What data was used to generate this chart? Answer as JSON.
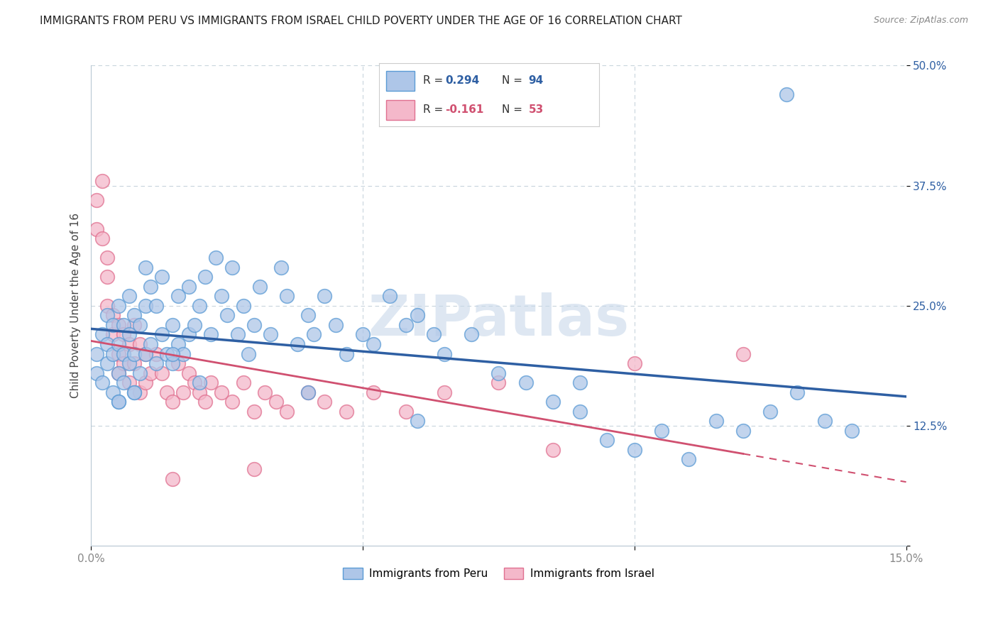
{
  "title": "IMMIGRANTS FROM PERU VS IMMIGRANTS FROM ISRAEL CHILD POVERTY UNDER THE AGE OF 16 CORRELATION CHART",
  "source": "Source: ZipAtlas.com",
  "ylabel": "Child Poverty Under the Age of 16",
  "xlim": [
    0,
    0.15
  ],
  "ylim": [
    0,
    0.5
  ],
  "xticks": [
    0.0,
    0.05,
    0.1,
    0.15
  ],
  "xticklabels": [
    "0.0%",
    "",
    "",
    "15.0%"
  ],
  "yticks": [
    0.0,
    0.125,
    0.25,
    0.375,
    0.5
  ],
  "yticklabels": [
    "",
    "12.5%",
    "25.0%",
    "37.5%",
    "50.0%"
  ],
  "peru_R": 0.294,
  "peru_N": 94,
  "israel_R": -0.161,
  "israel_N": 53,
  "peru_color": "#aec6e8",
  "peru_edge_color": "#5b9bd5",
  "peru_line_color": "#2e5fa3",
  "israel_color": "#f4b8ca",
  "israel_edge_color": "#e07090",
  "israel_line_color": "#d05070",
  "label_color": "#2e5fa3",
  "background_color": "#ffffff",
  "grid_color": "#c8d4dc",
  "watermark": "ZIPatlas",
  "watermark_color": "#c8d8ea",
  "peru_x": [
    0.001,
    0.001,
    0.002,
    0.002,
    0.003,
    0.003,
    0.003,
    0.004,
    0.004,
    0.004,
    0.005,
    0.005,
    0.005,
    0.005,
    0.006,
    0.006,
    0.006,
    0.007,
    0.007,
    0.007,
    0.008,
    0.008,
    0.008,
    0.009,
    0.009,
    0.01,
    0.01,
    0.01,
    0.011,
    0.011,
    0.012,
    0.012,
    0.013,
    0.013,
    0.014,
    0.015,
    0.015,
    0.016,
    0.016,
    0.017,
    0.018,
    0.018,
    0.019,
    0.02,
    0.021,
    0.022,
    0.023,
    0.024,
    0.025,
    0.026,
    0.027,
    0.028,
    0.029,
    0.03,
    0.031,
    0.033,
    0.035,
    0.036,
    0.038,
    0.04,
    0.041,
    0.043,
    0.045,
    0.047,
    0.05,
    0.052,
    0.055,
    0.058,
    0.06,
    0.063,
    0.065,
    0.07,
    0.075,
    0.08,
    0.085,
    0.09,
    0.095,
    0.1,
    0.105,
    0.11,
    0.115,
    0.12,
    0.125,
    0.128,
    0.13,
    0.135,
    0.14,
    0.09,
    0.06,
    0.04,
    0.02,
    0.015,
    0.008,
    0.005
  ],
  "peru_y": [
    0.18,
    0.2,
    0.17,
    0.22,
    0.19,
    0.21,
    0.24,
    0.16,
    0.2,
    0.23,
    0.15,
    0.18,
    0.21,
    0.25,
    0.17,
    0.2,
    0.23,
    0.19,
    0.22,
    0.26,
    0.16,
    0.2,
    0.24,
    0.18,
    0.23,
    0.2,
    0.25,
    0.29,
    0.21,
    0.27,
    0.19,
    0.25,
    0.22,
    0.28,
    0.2,
    0.19,
    0.23,
    0.21,
    0.26,
    0.2,
    0.22,
    0.27,
    0.23,
    0.25,
    0.28,
    0.22,
    0.3,
    0.26,
    0.24,
    0.29,
    0.22,
    0.25,
    0.2,
    0.23,
    0.27,
    0.22,
    0.29,
    0.26,
    0.21,
    0.24,
    0.22,
    0.26,
    0.23,
    0.2,
    0.22,
    0.21,
    0.26,
    0.23,
    0.24,
    0.22,
    0.2,
    0.22,
    0.18,
    0.17,
    0.15,
    0.14,
    0.11,
    0.1,
    0.12,
    0.09,
    0.13,
    0.12,
    0.14,
    0.47,
    0.16,
    0.13,
    0.12,
    0.17,
    0.13,
    0.16,
    0.17,
    0.2,
    0.16,
    0.15
  ],
  "israel_x": [
    0.001,
    0.001,
    0.002,
    0.002,
    0.003,
    0.003,
    0.003,
    0.004,
    0.004,
    0.005,
    0.005,
    0.005,
    0.006,
    0.006,
    0.007,
    0.007,
    0.008,
    0.008,
    0.009,
    0.009,
    0.01,
    0.01,
    0.011,
    0.012,
    0.013,
    0.014,
    0.015,
    0.016,
    0.017,
    0.018,
    0.019,
    0.02,
    0.021,
    0.022,
    0.024,
    0.026,
    0.028,
    0.03,
    0.032,
    0.034,
    0.036,
    0.04,
    0.043,
    0.047,
    0.052,
    0.058,
    0.065,
    0.075,
    0.085,
    0.1,
    0.12,
    0.03,
    0.015
  ],
  "israel_y": [
    0.36,
    0.33,
    0.38,
    0.32,
    0.3,
    0.28,
    0.25,
    0.24,
    0.22,
    0.2,
    0.23,
    0.18,
    0.22,
    0.19,
    0.21,
    0.17,
    0.23,
    0.19,
    0.21,
    0.16,
    0.2,
    0.17,
    0.18,
    0.2,
    0.18,
    0.16,
    0.15,
    0.19,
    0.16,
    0.18,
    0.17,
    0.16,
    0.15,
    0.17,
    0.16,
    0.15,
    0.17,
    0.14,
    0.16,
    0.15,
    0.14,
    0.16,
    0.15,
    0.14,
    0.16,
    0.14,
    0.16,
    0.17,
    0.1,
    0.19,
    0.2,
    0.08,
    0.07
  ]
}
